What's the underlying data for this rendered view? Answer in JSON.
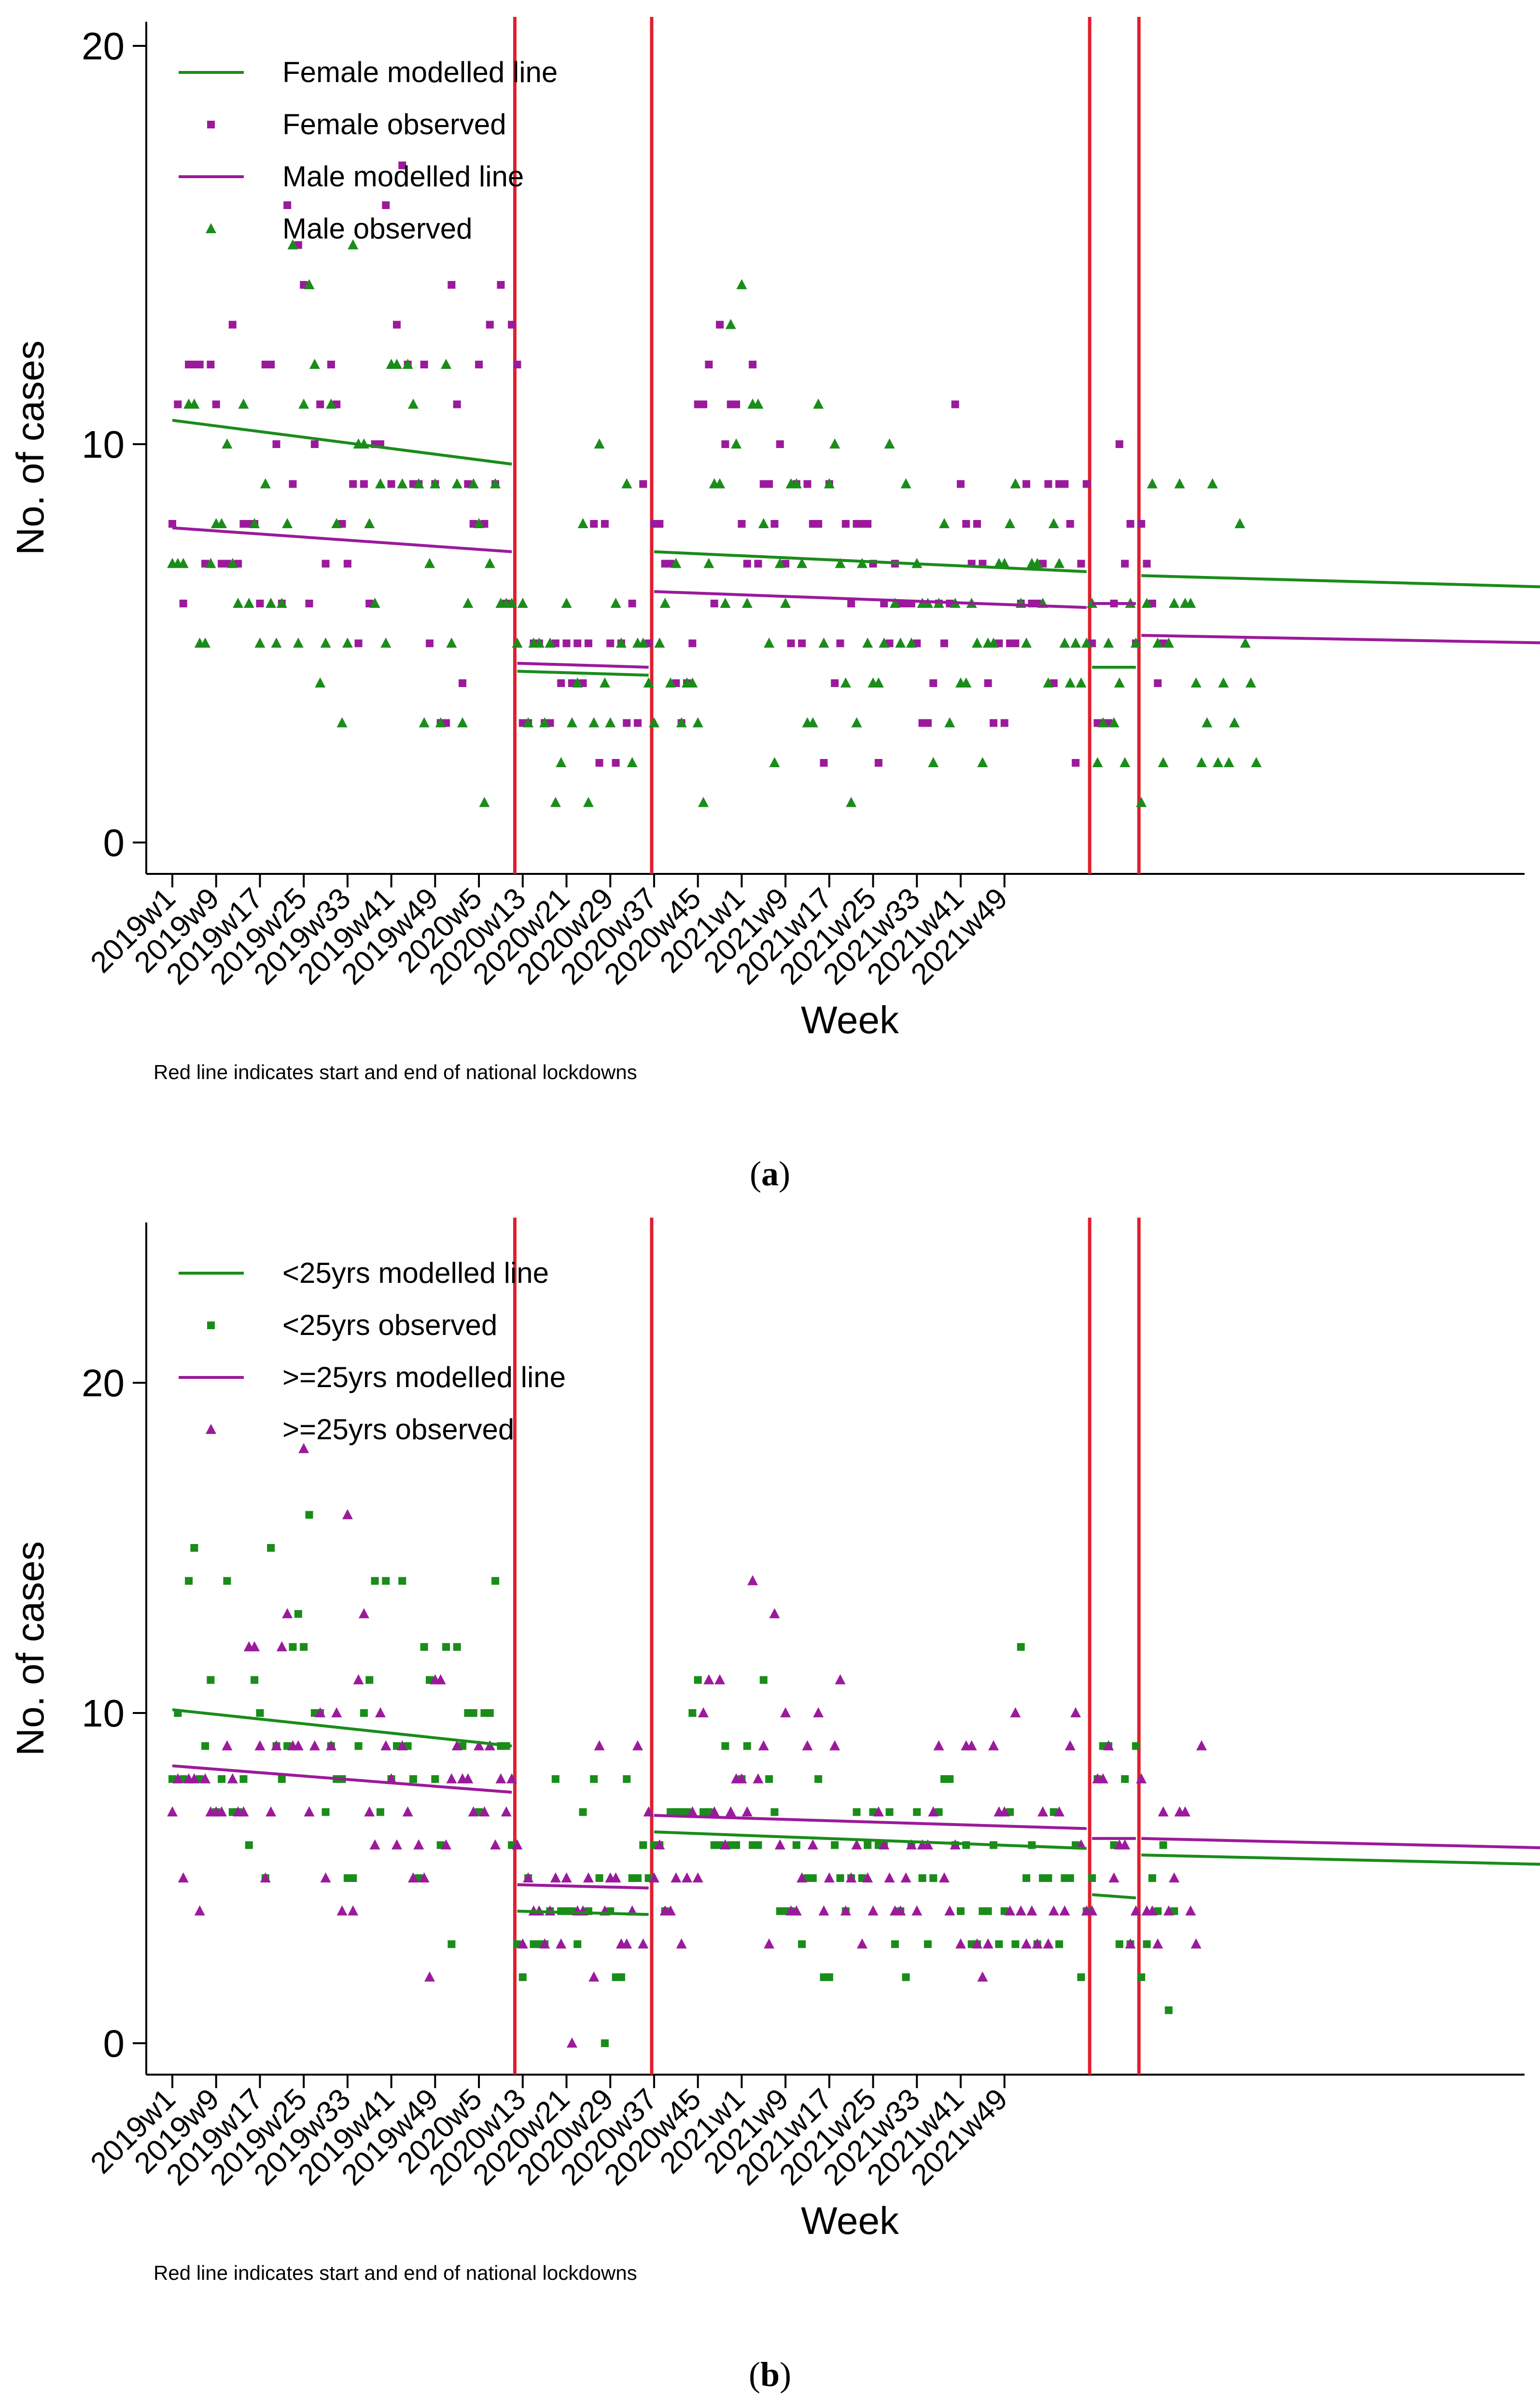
{
  "chart_data": [
    {
      "panel_label": "a",
      "type": "scatter",
      "x_ticks": [
        "2019w1",
        "2019w9",
        "2019w17",
        "2019w25",
        "2019w33",
        "2019w41",
        "2019w49",
        "2020w5",
        "2020w13",
        "2020w21",
        "2020w29",
        "2020w37",
        "2020w45",
        "2021w1",
        "2021w9",
        "2021w17",
        "2021w25",
        "2021w33",
        "2021w41",
        "2021w49"
      ],
      "xlabel": "Week",
      "ylabel": "No. of cases",
      "ylim": [
        0,
        20
      ],
      "y_ticks": [
        0,
        10,
        20
      ],
      "note": "Red line indicates start and end of national lockdowns",
      "lockdown_lines_week_index": [
        63,
        88,
        168,
        177
      ],
      "legend": [
        "Female modelled line",
        "Female observed",
        "Male modelled line",
        "Male observed"
      ],
      "colors": {
        "series_a": "#1a8c1a",
        "series_b": "#9b1a9b",
        "lockdown": "#e01f2f"
      },
      "series": [
        {
          "name": "Female modelled line",
          "color": "#1a8c1a",
          "segments": [
            {
              "x": [
                0,
                62
              ],
              "y": [
                10.6,
                9.5
              ]
            },
            {
              "x": [
                63,
                87
              ],
              "y": [
                4.3,
                4.2
              ]
            },
            {
              "x": [
                88,
                167
              ],
              "y": [
                7.3,
                6.8
              ]
            },
            {
              "x": [
                168,
                176
              ],
              "y": [
                4.4,
                4.4
              ]
            },
            {
              "x": [
                177,
                255
              ],
              "y": [
                6.7,
                6.4
              ]
            }
          ]
        },
        {
          "name": "Male modelled line",
          "color": "#9b1a9b",
          "segments": [
            {
              "x": [
                0,
                62
              ],
              "y": [
                7.9,
                7.3
              ]
            },
            {
              "x": [
                63,
                87
              ],
              "y": [
                4.5,
                4.4
              ]
            },
            {
              "x": [
                88,
                167
              ],
              "y": [
                6.3,
                5.9
              ]
            },
            {
              "x": [
                168,
                176
              ],
              "y": [
                6.0,
                6.0
              ]
            },
            {
              "x": [
                177,
                255
              ],
              "y": [
                5.2,
                5.0
              ]
            }
          ]
        },
        {
          "name": "Female observed",
          "color": "#9b1a9b",
          "marker": "square",
          "values": [
            8,
            11,
            6,
            12,
            12,
            12,
            7,
            12,
            11,
            7,
            7,
            13,
            7,
            8,
            8,
            8,
            6,
            12,
            12,
            10,
            6,
            16,
            9,
            15,
            14,
            6,
            10,
            11,
            7,
            12,
            11,
            8,
            7,
            9,
            5,
            9,
            6,
            10,
            10,
            16,
            9,
            13,
            17,
            12,
            9,
            9,
            12,
            5,
            9,
            3,
            3,
            14,
            11,
            4,
            9,
            8,
            12,
            8,
            13,
            9,
            14,
            6,
            13,
            12,
            3,
            3,
            5,
            5,
            3,
            3,
            5,
            4,
            5,
            4,
            5,
            4,
            5,
            8,
            2,
            8,
            5,
            2,
            5,
            3,
            6,
            3,
            9,
            5,
            8,
            8,
            7,
            7,
            4,
            3,
            4,
            5,
            11,
            11,
            12,
            6,
            13,
            10,
            11,
            11,
            8,
            7,
            12,
            7,
            9,
            9,
            8,
            10,
            7,
            5,
            9,
            5,
            9,
            8,
            8,
            2,
            9,
            4,
            5,
            8,
            6,
            8,
            8,
            8,
            7,
            2,
            6,
            5,
            7,
            6,
            6,
            6,
            5,
            3,
            3,
            4,
            6,
            5,
            6,
            11,
            9,
            8,
            7,
            8,
            7,
            4,
            3,
            5,
            3,
            5,
            5,
            6,
            9,
            6,
            6,
            7,
            9,
            4,
            9,
            9,
            8,
            2,
            7,
            9,
            5,
            3,
            3,
            3,
            6,
            10,
            7,
            8,
            5,
            8,
            7,
            6,
            4,
            5
          ]
        },
        {
          "name": "Male observed",
          "color": "#1a8c1a",
          "marker": "triangle",
          "values": [
            7,
            7,
            7,
            11,
            11,
            5,
            5,
            7,
            8,
            8,
            10,
            7,
            6,
            11,
            6,
            8,
            5,
            9,
            6,
            5,
            6,
            8,
            15,
            5,
            11,
            14,
            12,
            4,
            5,
            11,
            8,
            3,
            5,
            15,
            10,
            10,
            8,
            6,
            9,
            5,
            12,
            12,
            9,
            12,
            11,
            9,
            3,
            7,
            9,
            3,
            12,
            5,
            9,
            3,
            6,
            9,
            8,
            1,
            7,
            9,
            6,
            6,
            6,
            5,
            6,
            3,
            5,
            5,
            3,
            5,
            1,
            2,
            6,
            3,
            4,
            8,
            1,
            3,
            10,
            4,
            3,
            6,
            5,
            9,
            2,
            5,
            5,
            4,
            3,
            5,
            6,
            4,
            7,
            3,
            4,
            4,
            3,
            1,
            7,
            9,
            9,
            6,
            13,
            10,
            14,
            6,
            11,
            11,
            8,
            5,
            2,
            7,
            6,
            9,
            9,
            7,
            3,
            3,
            11,
            5,
            9,
            10,
            7,
            4,
            1,
            3,
            7,
            5,
            4,
            4,
            5,
            10,
            6,
            5,
            9,
            5,
            7,
            6,
            6,
            2,
            6,
            8,
            3,
            6,
            4,
            4,
            6,
            5,
            2,
            5,
            5,
            7,
            7,
            8,
            9,
            6,
            5,
            7,
            7,
            6,
            4,
            8,
            7,
            5,
            4,
            5,
            4,
            5,
            6,
            2,
            3,
            5,
            3,
            4,
            2,
            6,
            5,
            1,
            6,
            9,
            5,
            2,
            5,
            6,
            9,
            6,
            6,
            4,
            2,
            3,
            9,
            2,
            4,
            2,
            3,
            8,
            5,
            4,
            2
          ]
        }
      ]
    },
    {
      "panel_label": "b",
      "type": "scatter",
      "x_ticks": [
        "2019w1",
        "2019w9",
        "2019w17",
        "2019w25",
        "2019w33",
        "2019w41",
        "2019w49",
        "2020w5",
        "2020w13",
        "2020w21",
        "2020w29",
        "2020w37",
        "2020w45",
        "2021w1",
        "2021w9",
        "2021w17",
        "2021w25",
        "2021w33",
        "2021w41",
        "2021w49"
      ],
      "xlabel": "Week",
      "ylabel": "No. of cases",
      "ylim": [
        0,
        25
      ],
      "y_ticks": [
        0,
        10,
        20
      ],
      "note": "Red line indicates start and end of national lockdowns",
      "lockdown_lines_week_index": [
        63,
        88,
        168,
        177
      ],
      "legend": [
        "<25yrs modelled line",
        "<25yrs observed",
        ">=25yrs modelled line",
        ">=25yrs observed"
      ],
      "colors": {
        "series_a": "#1a8c1a",
        "series_b": "#9b1a9b",
        "lockdown": "#e01f2f"
      },
      "series": [
        {
          "name": "<25yrs modelled line",
          "color": "#1a8c1a",
          "segments": [
            {
              "x": [
                0,
                62
              ],
              "y": [
                10.1,
                9.0
              ]
            },
            {
              "x": [
                63,
                87
              ],
              "y": [
                4.0,
                3.9
              ]
            },
            {
              "x": [
                88,
                167
              ],
              "y": [
                6.4,
                5.9
              ]
            },
            {
              "x": [
                168,
                176
              ],
              "y": [
                4.5,
                4.4
              ]
            },
            {
              "x": [
                177,
                255
              ],
              "y": [
                5.7,
                5.4
              ]
            }
          ]
        },
        {
          "name": ">=25yrs modelled line",
          "color": "#9b1a9b",
          "segments": [
            {
              "x": [
                0,
                62
              ],
              "y": [
                8.4,
                7.6
              ]
            },
            {
              "x": [
                63,
                87
              ],
              "y": [
                4.8,
                4.7
              ]
            },
            {
              "x": [
                88,
                167
              ],
              "y": [
                6.9,
                6.5
              ]
            },
            {
              "x": [
                168,
                176
              ],
              "y": [
                6.2,
                6.2
              ]
            },
            {
              "x": [
                177,
                255
              ],
              "y": [
                6.2,
                5.9
              ]
            }
          ]
        },
        {
          "name": "<25yrs observed",
          "color": "#1a8c1a",
          "marker": "square",
          "values": [
            8,
            10,
            8,
            14,
            15,
            8,
            9,
            11,
            7,
            8,
            14,
            7,
            7,
            8,
            6,
            11,
            10,
            5,
            15,
            9,
            8,
            9,
            12,
            13,
            12,
            16,
            10,
            10,
            7,
            9,
            8,
            8,
            5,
            5,
            9,
            10,
            11,
            14,
            7,
            14,
            8,
            9,
            14,
            9,
            8,
            5,
            12,
            11,
            8,
            6,
            12,
            3,
            12,
            9,
            10,
            10,
            7,
            10,
            10,
            14,
            9,
            9,
            6,
            3,
            2,
            5,
            3,
            3,
            3,
            4,
            8,
            4,
            4,
            4,
            3,
            7,
            4,
            8,
            5,
            0,
            4,
            2,
            2,
            8,
            5,
            5,
            6,
            5,
            6,
            6,
            4,
            7,
            7,
            7,
            7,
            10,
            11,
            7,
            7,
            6,
            6,
            9,
            6,
            6,
            8,
            9,
            6,
            6,
            11,
            8,
            7,
            4,
            4,
            4,
            6,
            3,
            5,
            5,
            8,
            2,
            2,
            6,
            5,
            4,
            5,
            7,
            5,
            6,
            7,
            6,
            6,
            7,
            3,
            4,
            2,
            6,
            7,
            5,
            3,
            5,
            7,
            8,
            8,
            6,
            4,
            6,
            3,
            3,
            4,
            4,
            6,
            3,
            4,
            7,
            3,
            12,
            5,
            6,
            3,
            5,
            5,
            7,
            3,
            5,
            5,
            6,
            2,
            4,
            5,
            8,
            9,
            9,
            6,
            3,
            8,
            3,
            9,
            2,
            3,
            5,
            4,
            6,
            1,
            4
          ]
        },
        {
          "name": ">=25yrs observed",
          "color": "#9b1a9b",
          "marker": "triangle",
          "values": [
            7,
            8,
            5,
            8,
            8,
            4,
            8,
            7,
            7,
            7,
            9,
            8,
            7,
            7,
            12,
            12,
            9,
            5,
            7,
            9,
            12,
            13,
            9,
            9,
            18,
            7,
            9,
            10,
            5,
            9,
            10,
            4,
            16,
            4,
            11,
            13,
            7,
            6,
            10,
            9,
            8,
            6,
            9,
            7,
            5,
            6,
            5,
            2,
            11,
            11,
            6,
            8,
            9,
            8,
            8,
            7,
            9,
            7,
            9,
            6,
            8,
            7,
            8,
            6,
            3,
            5,
            4,
            4,
            3,
            4,
            5,
            3,
            5,
            0,
            4,
            4,
            5,
            2,
            9,
            4,
            5,
            5,
            3,
            3,
            4,
            9,
            3,
            7,
            5,
            6,
            4,
            4,
            5,
            3,
            5,
            7,
            5,
            10,
            11,
            7,
            11,
            6,
            7,
            8,
            8,
            7,
            14,
            8,
            9,
            3,
            13,
            6,
            10,
            4,
            4,
            5,
            9,
            6,
            10,
            4,
            5,
            9,
            11,
            4,
            5,
            6,
            3,
            5,
            4,
            7,
            6,
            5,
            4,
            4,
            5,
            6,
            4,
            6,
            6,
            7,
            9,
            5,
            4,
            6,
            3,
            9,
            9,
            3,
            2,
            3,
            9,
            7,
            7,
            4,
            10,
            4,
            3,
            4,
            3,
            7,
            3,
            4,
            7,
            4,
            9,
            10,
            6,
            4,
            4,
            8,
            8,
            9,
            5,
            6,
            6,
            3,
            4,
            8,
            4,
            4,
            3,
            7,
            4,
            5,
            7,
            7,
            4,
            3,
            9
          ]
        }
      ]
    }
  ],
  "captions": {
    "a": "a",
    "b": "b"
  }
}
